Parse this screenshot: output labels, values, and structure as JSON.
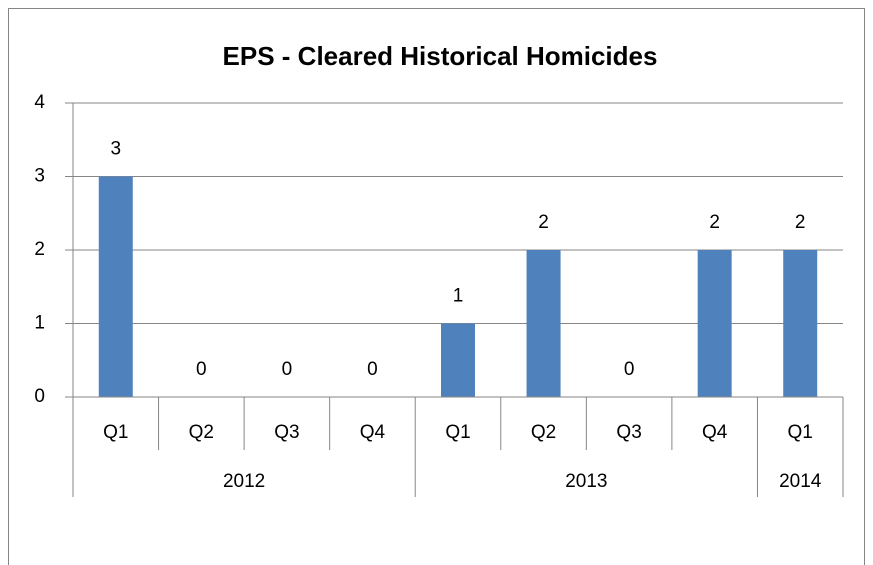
{
  "chart_data": {
    "type": "bar",
    "title": "EPS - Cleared Historical Homicides",
    "groups": [
      {
        "name": "2012",
        "categories": [
          "Q1",
          "Q2",
          "Q3",
          "Q4"
        ],
        "values": [
          3,
          0,
          0,
          0
        ]
      },
      {
        "name": "2013",
        "categories": [
          "Q1",
          "Q2",
          "Q3",
          "Q4"
        ],
        "values": [
          1,
          2,
          0,
          2
        ]
      },
      {
        "name": "2014",
        "categories": [
          "Q1"
        ],
        "values": [
          2
        ]
      }
    ],
    "color": "#4f81bd",
    "ylim": [
      0,
      4
    ],
    "yticks": [
      0,
      1,
      2,
      3,
      4
    ],
    "grid": true
  }
}
